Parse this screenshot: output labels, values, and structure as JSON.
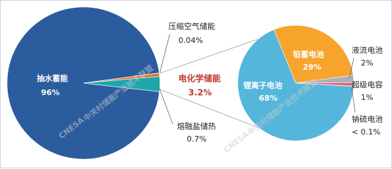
{
  "chart_data": [
    {
      "type": "pie",
      "categories": [
        "抽水蓄能",
        "压缩空气储能",
        "熔融盐储热",
        "电化学储能"
      ],
      "values": [
        96,
        0.04,
        0.7,
        3.2
      ],
      "value_labels": [
        "96%",
        "0.04%",
        "0.7%",
        "3.2%"
      ],
      "colors": [
        "#2b5c9e",
        "#9aa3ad",
        "#e8712c",
        "#1fa6ac"
      ]
    },
    {
      "type": "pie",
      "categories": [
        "锂离子电池",
        "铅蓄电池",
        "液流电池",
        "超级电容",
        "钠硫电池"
      ],
      "values": [
        68,
        29,
        2,
        1,
        0.05
      ],
      "value_labels": [
        "68%",
        "29%",
        "2%",
        "1%",
        "< 0.1%"
      ],
      "colors": [
        "#55b6dc",
        "#f7a42c",
        "#a9b0b8",
        "#e5607a",
        "#6a4c9c"
      ]
    }
  ],
  "watermark": {
    "logo": "CNESA",
    "text": "中关村储能产业技术联盟"
  }
}
